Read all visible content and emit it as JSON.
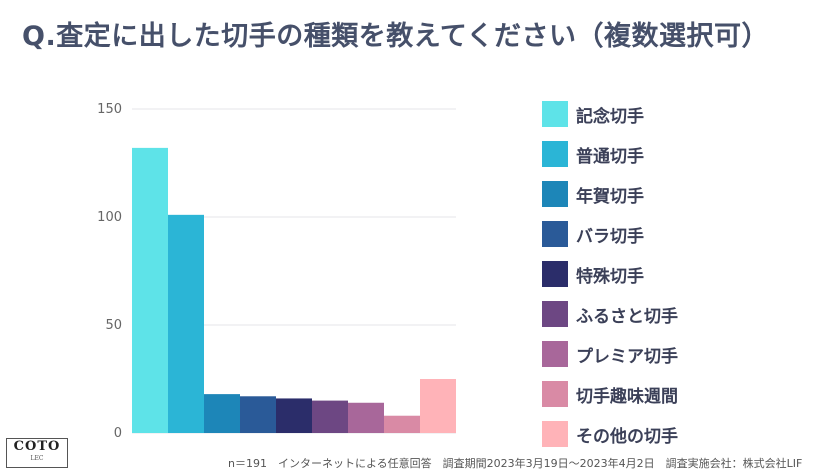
{
  "title": "Q.査定に出した切手の種類を教えてください（複数選択可）",
  "footnote": "n＝191　インターネットによる任意回答　調査期間2023年3月19日〜2023年4月2日　調査実施会社：株式会社LIF",
  "logo": {
    "main": "COTO",
    "sub": "LEC"
  },
  "chart_data": {
    "type": "bar",
    "title": "",
    "xlabel": "",
    "ylabel": "",
    "ylim": [
      0,
      150
    ],
    "yticks": [
      0,
      50,
      100,
      150
    ],
    "grid": true,
    "legend_position": "right",
    "categories": [
      "記念切手",
      "普通切手",
      "年賀切手",
      "バラ切手",
      "特殊切手",
      "ふるさと切手",
      "プレミア切手",
      "切手趣味週間",
      "その他の切手"
    ],
    "values": [
      132,
      101,
      18,
      17,
      16,
      15,
      14,
      8,
      25
    ],
    "colors": [
      "#5ee3e8",
      "#2bb5d6",
      "#1d86b8",
      "#2a5a98",
      "#2b2d6a",
      "#6d4783",
      "#a8679a",
      "#d98aa5",
      "#ffb3b8"
    ]
  }
}
